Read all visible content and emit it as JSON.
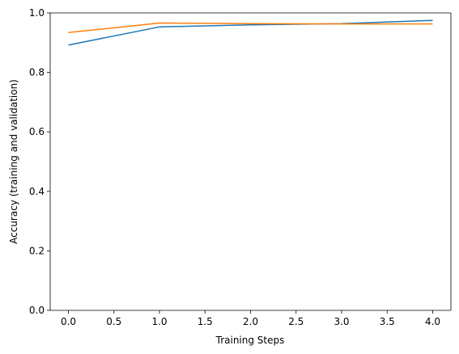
{
  "chart_data": {
    "type": "line",
    "title": "",
    "xlabel": "Training Steps",
    "ylabel": "Accuracy (training and validation)",
    "xlim": [
      -0.2,
      4.2
    ],
    "ylim": [
      0.0,
      1.0
    ],
    "xticks": [
      0.0,
      0.5,
      1.0,
      1.5,
      2.0,
      2.5,
      3.0,
      3.5,
      4.0
    ],
    "xtick_labels": [
      "0.0",
      "0.5",
      "1.0",
      "1.5",
      "2.0",
      "2.5",
      "3.0",
      "3.5",
      "4.0"
    ],
    "yticks": [
      0.0,
      0.2,
      0.4,
      0.6,
      0.8,
      1.0
    ],
    "ytick_labels": [
      "0.0",
      "0.2",
      "0.4",
      "0.6",
      "0.8",
      "1.0"
    ],
    "grid": false,
    "legend": "none",
    "x": [
      0,
      1,
      2,
      3,
      4
    ],
    "series": [
      {
        "color": "#1f77b4",
        "values": [
          0.892,
          0.953,
          0.96,
          0.964,
          0.975
        ]
      },
      {
        "color": "#ff7f0e",
        "values": [
          0.934,
          0.966,
          0.964,
          0.963,
          0.963
        ]
      }
    ]
  }
}
